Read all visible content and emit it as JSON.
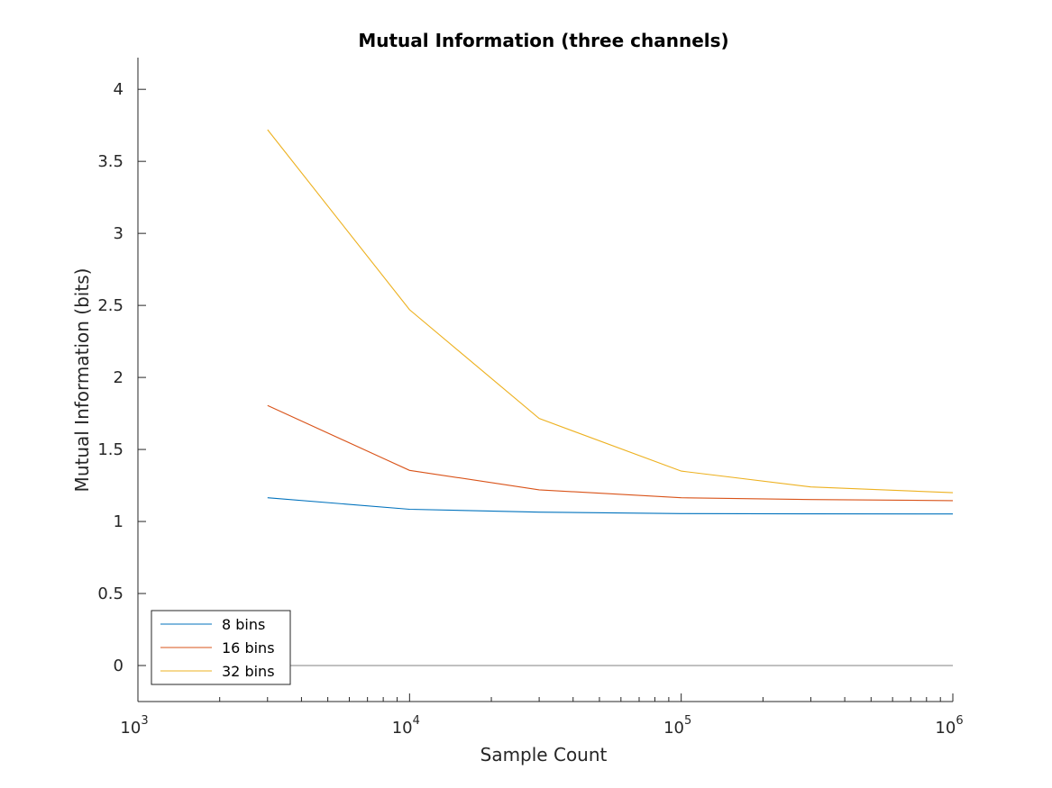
{
  "chart_data": {
    "type": "line",
    "title": "Mutual Information (three channels)",
    "xlabel": "Sample Count",
    "ylabel": "Mutual Information (bits)",
    "xscale": "log",
    "xlim": [
      1000,
      1000000
    ],
    "ylim": [
      -0.25,
      4.22
    ],
    "x_tick_labels": [
      {
        "value": 1000,
        "base": "10",
        "exp": "3"
      },
      {
        "value": 10000,
        "base": "10",
        "exp": "4"
      },
      {
        "value": 100000,
        "base": "10",
        "exp": "5"
      },
      {
        "value": 1000000,
        "base": "10",
        "exp": "6"
      }
    ],
    "y_ticks": [
      0,
      0.5,
      1,
      1.5,
      2,
      2.5,
      3,
      3.5,
      4
    ],
    "y_tick_labels": [
      "0",
      "0.5",
      "1",
      "1.5",
      "2",
      "2.5",
      "3",
      "3.5",
      "4"
    ],
    "x": [
      3000,
      10000,
      30000,
      100000,
      300000,
      1000000
    ],
    "series": [
      {
        "name": "8 bins",
        "color": "#0072BD",
        "values": [
          1.165,
          1.085,
          1.065,
          1.055,
          1.053,
          1.052
        ]
      },
      {
        "name": "16 bins",
        "color": "#D95319",
        "values": [
          1.805,
          1.355,
          1.22,
          1.165,
          1.152,
          1.145
        ]
      },
      {
        "name": "32 bins",
        "color": "#EDB120",
        "values": [
          3.72,
          2.47,
          1.715,
          1.35,
          1.24,
          1.2
        ]
      }
    ],
    "reference_line": {
      "y": 0,
      "x_range": [
        3000,
        1000000
      ],
      "color": "#808080"
    },
    "legend_position": "bottom-left",
    "grid": false
  }
}
